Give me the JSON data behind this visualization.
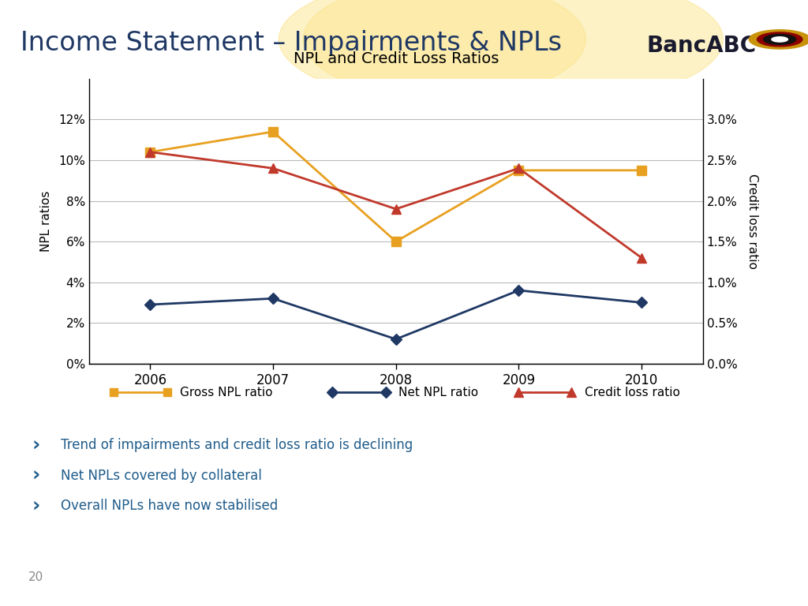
{
  "title": "NPL and Credit Loss Ratios",
  "header_title": "Income Statement – Impairments & NPLs",
  "years": [
    2006,
    2007,
    2008,
    2009,
    2010
  ],
  "gross_npl": [
    0.104,
    0.114,
    0.06,
    0.095,
    0.095
  ],
  "net_npl": [
    0.029,
    0.032,
    0.012,
    0.036,
    0.03
  ],
  "credit_loss": [
    0.026,
    0.024,
    0.019,
    0.024,
    0.013
  ],
  "gross_npl_color": "#E8A020",
  "net_npl_color": "#1F3864",
  "credit_loss_color": "#C0392B",
  "left_ylim": [
    0,
    0.14
  ],
  "right_ylim": [
    0,
    0.035
  ],
  "left_yticks": [
    0.0,
    0.02,
    0.04,
    0.06,
    0.08,
    0.1,
    0.12
  ],
  "right_yticks": [
    0.0,
    0.005,
    0.01,
    0.015,
    0.02,
    0.025,
    0.03
  ],
  "header_bg_color": "#F5C518",
  "header_text_color": "#1F3864",
  "bullet_color": "#1F5C8B",
  "bullets": [
    "Trend of impairments and credit loss ratio is declining",
    "Net NPLs covered by collateral",
    "Overall NPLs have now stabilised"
  ],
  "page_number": "20",
  "ylabel_left": "NPL ratios",
  "ylabel_right": "Credit loss ratio",
  "legend_labels": [
    "Gross NPL ratio",
    "Net NPL ratio",
    "Credit loss ratio"
  ]
}
